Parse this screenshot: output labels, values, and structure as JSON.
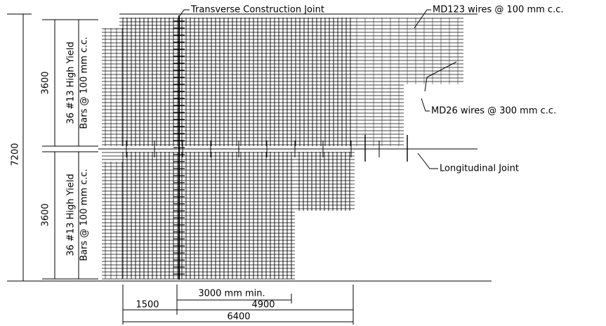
{
  "labels": {
    "transverse_joint": "Transverse Construction Joint",
    "md123": "MD123 wires @ 100 mm c.c.",
    "md26": "MD26 wires @ 300 mm c.c.",
    "longitudinal_joint": "Longitudinal Joint"
  },
  "dimensions": {
    "total_height": "7200",
    "upper_height": "3600",
    "lower_height": "3600",
    "min_length": "3000 mm min.",
    "offset": "1500",
    "length": "4900",
    "total_length": "6400"
  },
  "bar_notes": {
    "upper": [
      "36 #13 High Yield",
      "Bars @ 100 mm c.c."
    ],
    "lower": [
      "36 #13 High Yield",
      "Bars @ 100 mm c.c."
    ]
  }
}
